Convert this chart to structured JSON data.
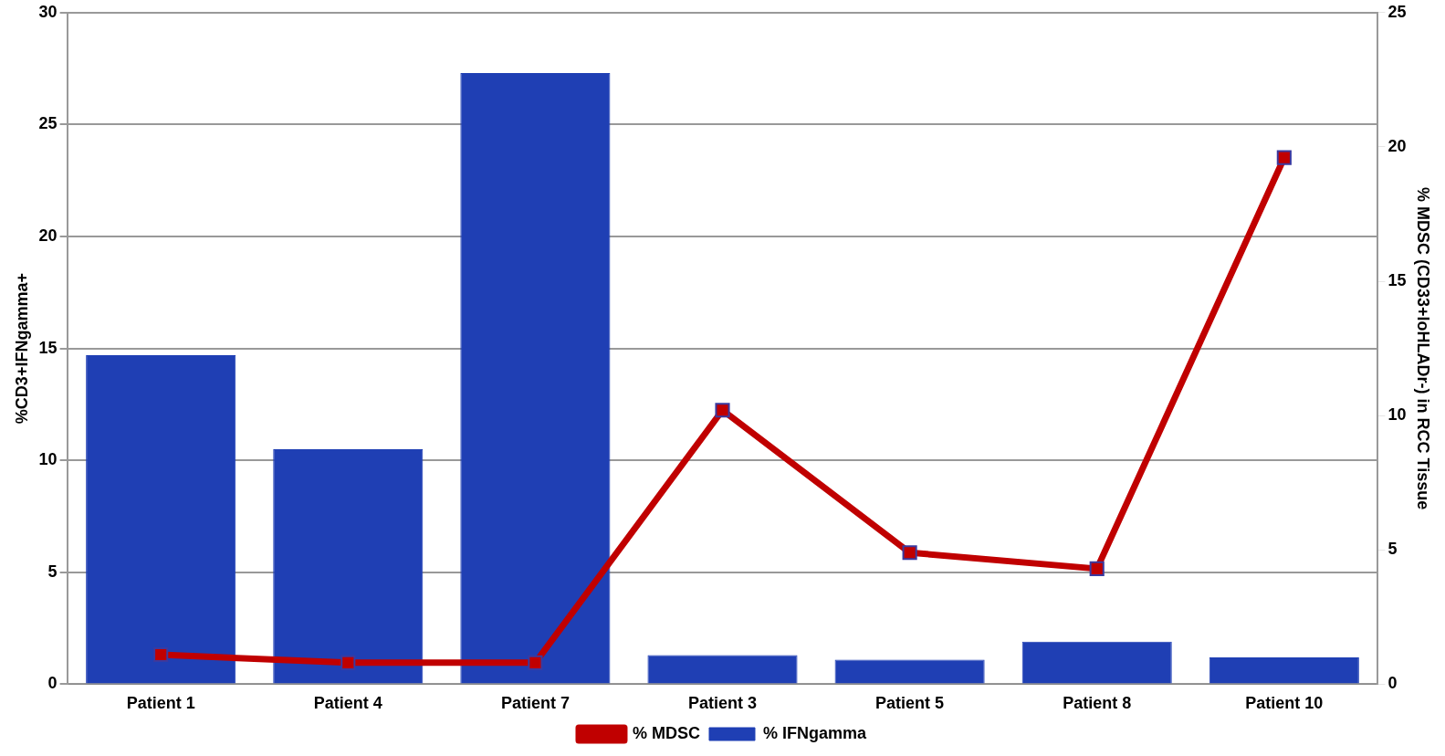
{
  "chart_data": {
    "type": "bar",
    "ylabel": "%CD3+IFNgamma+",
    "y2label": "% MDSC (CD33+loHLADr-) in RCC Tissue",
    "categories": [
      "Patient 1",
      "Patient 4",
      "Patient 7",
      "Patient 3",
      "Patient 5",
      "Patient 8",
      "Patient 10"
    ],
    "series": [
      {
        "name": "% IFNgamma",
        "color": "#1f3fb4",
        "values": [
          14.7,
          10.5,
          27.3,
          1.3,
          1.1,
          1.9,
          1.2
        ]
      },
      {
        "name": "% MDSC",
        "type": "line",
        "axis": "y2",
        "color": "#c00000",
        "marker": "square",
        "values": [
          1.1,
          0.8,
          0.8,
          10.2,
          4.9,
          4.3,
          19.6
        ]
      }
    ],
    "ylim": [
      0,
      30
    ],
    "yticks": [
      0,
      5,
      10,
      15,
      20,
      25,
      30
    ],
    "y2lim": [
      0,
      25
    ],
    "y2ticks": [
      0,
      5,
      10,
      15,
      20,
      25
    ],
    "grid": "y",
    "legend": "bottom"
  }
}
